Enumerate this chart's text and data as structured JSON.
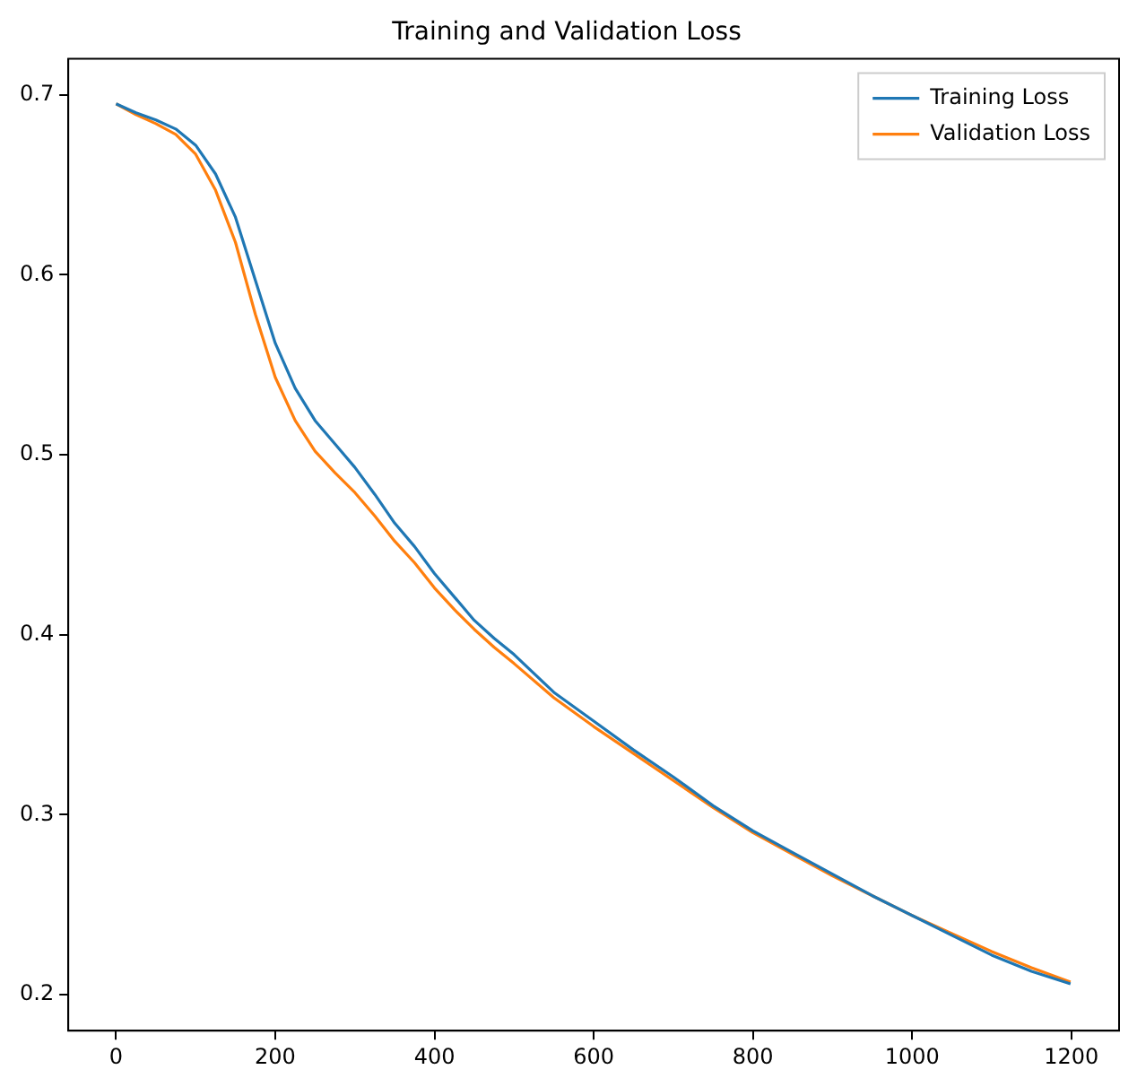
{
  "chart_data": {
    "type": "line",
    "title": "Training and Validation Loss",
    "xlim": [
      -60,
      1260
    ],
    "ylim": [
      0.18,
      0.72
    ],
    "xticks": [
      0,
      200,
      400,
      600,
      800,
      1000,
      1200
    ],
    "yticks": [
      0.2,
      0.3,
      0.4,
      0.5,
      0.6,
      0.7
    ],
    "grid": false,
    "legend": "top right",
    "marker": "none",
    "line_style": "solid",
    "series": [
      {
        "name": "Training Loss",
        "color": "#1f77b4",
        "x": [
          0,
          25,
          50,
          75,
          100,
          125,
          150,
          175,
          200,
          225,
          250,
          275,
          300,
          325,
          350,
          375,
          400,
          425,
          450,
          475,
          500,
          550,
          600,
          650,
          700,
          750,
          800,
          850,
          900,
          950,
          1000,
          1050,
          1100,
          1150,
          1199
        ],
        "values": [
          0.695,
          0.69,
          0.686,
          0.681,
          0.672,
          0.656,
          0.632,
          0.597,
          0.562,
          0.537,
          0.519,
          0.506,
          0.493,
          0.478,
          0.462,
          0.449,
          0.434,
          0.421,
          0.408,
          0.398,
          0.389,
          0.368,
          0.352,
          0.336,
          0.321,
          0.305,
          0.291,
          0.279,
          0.267,
          0.255,
          0.244,
          0.233,
          0.222,
          0.213,
          0.206
        ]
      },
      {
        "name": "Validation Loss",
        "color": "#ff7f0e",
        "x": [
          0,
          25,
          50,
          75,
          100,
          125,
          150,
          175,
          200,
          225,
          250,
          275,
          300,
          325,
          350,
          375,
          400,
          425,
          450,
          475,
          500,
          550,
          600,
          650,
          700,
          750,
          800,
          850,
          900,
          950,
          1000,
          1050,
          1100,
          1150,
          1199
        ],
        "values": [
          0.695,
          0.689,
          0.684,
          0.678,
          0.667,
          0.647,
          0.618,
          0.578,
          0.543,
          0.519,
          0.502,
          0.49,
          0.479,
          0.466,
          0.452,
          0.44,
          0.426,
          0.414,
          0.403,
          0.393,
          0.384,
          0.365,
          0.349,
          0.334,
          0.319,
          0.304,
          0.29,
          0.278,
          0.266,
          0.255,
          0.244,
          0.234,
          0.224,
          0.215,
          0.207
        ]
      }
    ]
  }
}
